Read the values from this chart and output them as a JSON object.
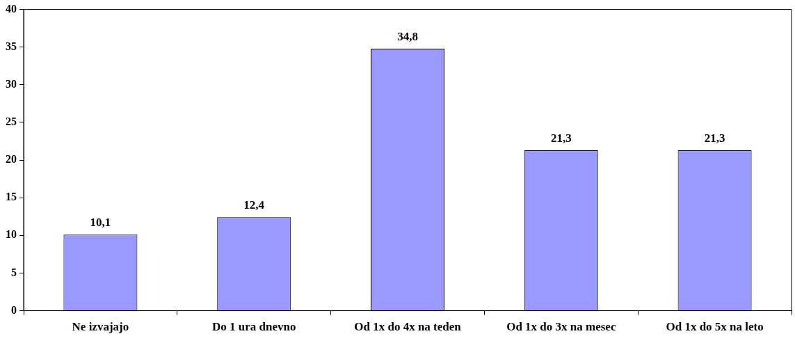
{
  "chart_data": {
    "type": "bar",
    "categories": [
      "Ne izvajajo",
      "Do 1 ura dnevno",
      "Od 1x do 4x na teden",
      "Od 1x do 3x na mesec",
      "Od 1x do 5x na leto"
    ],
    "values": [
      10.1,
      12.4,
      34.8,
      21.3,
      21.3
    ],
    "value_labels": [
      "10,1",
      "12,4",
      "34,8",
      "21,3",
      "21,3"
    ],
    "color": "#9999ff",
    "ylim": [
      0,
      40
    ],
    "yticks": [
      0,
      5,
      10,
      15,
      20,
      25,
      30,
      35,
      40
    ],
    "grid": false,
    "legend": false
  }
}
